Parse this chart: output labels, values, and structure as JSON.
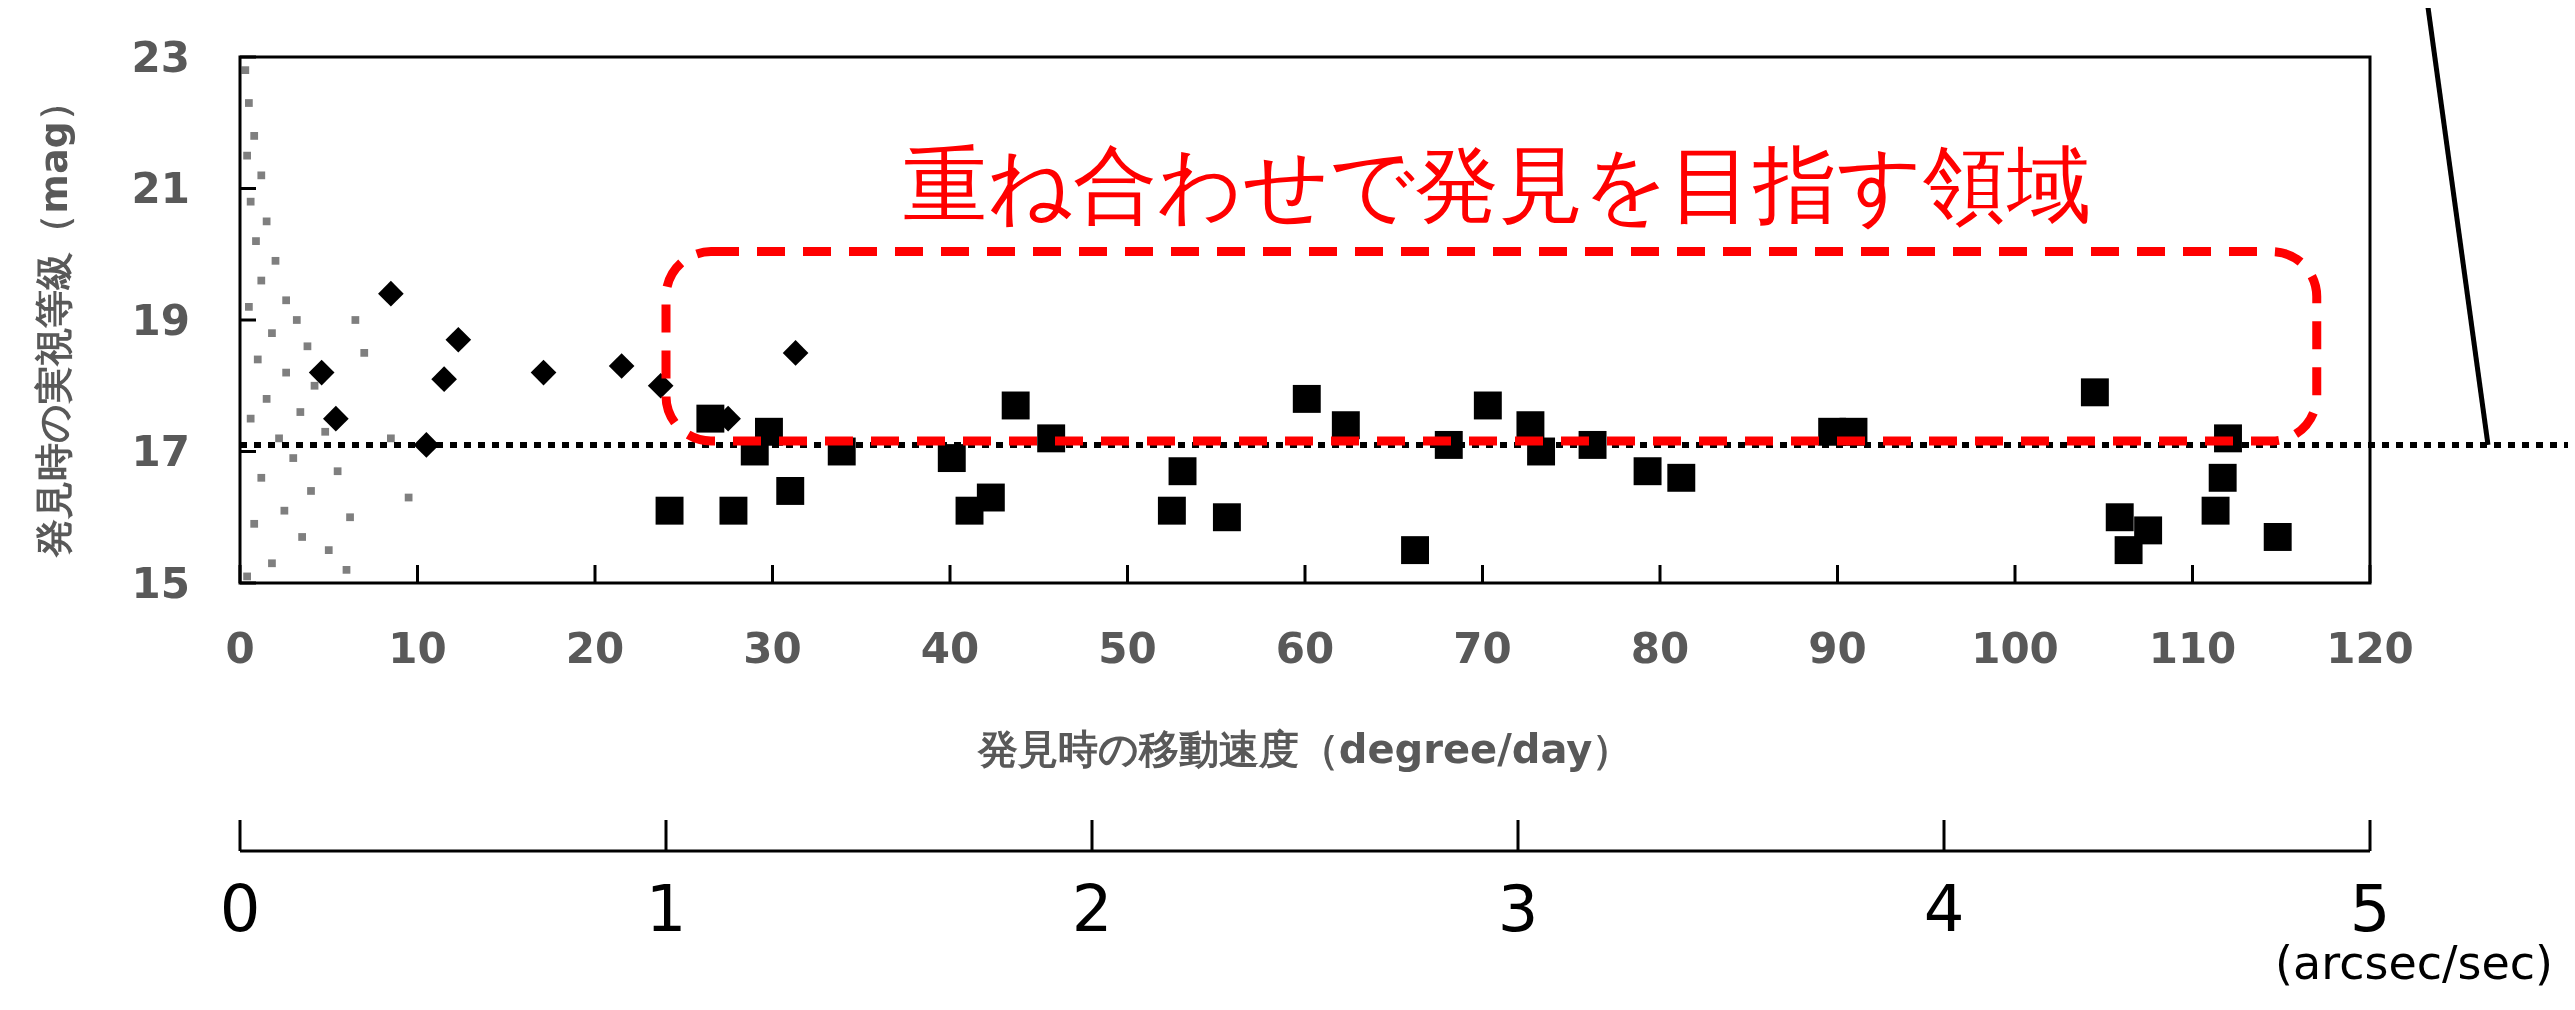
{
  "chart_data": {
    "type": "scatter",
    "xlabel": "発見時の移動速度（degree/day）",
    "ylabel": "発見時の実視等級（mag）",
    "x2label": "(arcsec/sec)",
    "annotations": [
      "重ね合わせで発見を目指す領域"
    ],
    "xlim": [
      0,
      120
    ],
    "xticks": [
      0,
      10,
      20,
      30,
      40,
      50,
      60,
      70,
      80,
      90,
      100,
      110,
      120
    ],
    "ylim": [
      15,
      23
    ],
    "yticks": [
      15,
      17,
      19,
      21,
      23
    ],
    "x2lim": [
      0,
      5
    ],
    "x2ticks": [
      0,
      1,
      2,
      3,
      4,
      5
    ],
    "grid": false,
    "ref_lines": [
      {
        "axis": "y",
        "value": 17.1,
        "line_style": "dotted",
        "color": "#000000"
      }
    ],
    "series": [
      {
        "color": "#7f7f7f",
        "marker": "square",
        "x": [
          0.3,
          0.5,
          0.8,
          0.4,
          1.2,
          0.6,
          1.5,
          0.9,
          2.0,
          1.2,
          2.6,
          0.5,
          3.2,
          1.8,
          3.8,
          1.0,
          2.6,
          4.2,
          1.5,
          3.4,
          0.6,
          4.8,
          2.2,
          3.0,
          5.5,
          1.2,
          4.0,
          2.5,
          6.2,
          0.8,
          3.5,
          5.0,
          1.8,
          6.0,
          0.4,
          7.0,
          8.5,
          9.5,
          6.5
        ],
        "values": [
          22.8,
          22.3,
          21.8,
          21.5,
          21.2,
          20.8,
          20.5,
          20.2,
          19.9,
          19.6,
          19.3,
          19.2,
          19.0,
          18.8,
          18.6,
          18.4,
          18.2,
          18.0,
          17.8,
          17.6,
          17.5,
          17.3,
          17.2,
          16.9,
          16.7,
          16.6,
          16.4,
          16.1,
          16.0,
          15.9,
          15.7,
          15.5,
          15.3,
          15.2,
          15.1,
          18.5,
          17.2,
          16.3,
          19.0
        ]
      },
      {
        "color": "#000000",
        "marker": "diamond",
        "x": [
          4.6,
          5.4,
          8.5,
          10.5,
          11.5,
          12.3,
          17.1,
          21.5,
          23.7,
          27.5,
          31.3
        ],
        "values": [
          18.2,
          17.5,
          19.4,
          17.1,
          18.1,
          18.7,
          18.2,
          18.3,
          18.0,
          17.5,
          18.5
        ]
      },
      {
        "color": "#000000",
        "marker": "square",
        "x": [
          24.2,
          26.5,
          27.8,
          29.0,
          29.8,
          31.0,
          33.9,
          40.1,
          41.1,
          42.3,
          43.7,
          45.7,
          52.5,
          53.1,
          55.6,
          60.1,
          62.3,
          66.2,
          68.1,
          70.3,
          72.7,
          73.3,
          76.2,
          79.3,
          81.2,
          89.7,
          90.9,
          104.5,
          105.9,
          106.4,
          107.5,
          111.3,
          111.7,
          112.0,
          114.8
        ],
        "values": [
          16.1,
          17.5,
          16.1,
          17.0,
          17.3,
          16.4,
          17.0,
          16.9,
          16.1,
          16.3,
          17.7,
          17.2,
          16.1,
          16.7,
          16.0,
          17.8,
          17.4,
          15.5,
          17.1,
          17.7,
          17.4,
          17.0,
          17.1,
          16.7,
          16.6,
          17.3,
          17.3,
          17.9,
          16.0,
          15.5,
          15.8,
          16.1,
          16.6,
          17.2,
          15.7
        ]
      }
    ]
  }
}
